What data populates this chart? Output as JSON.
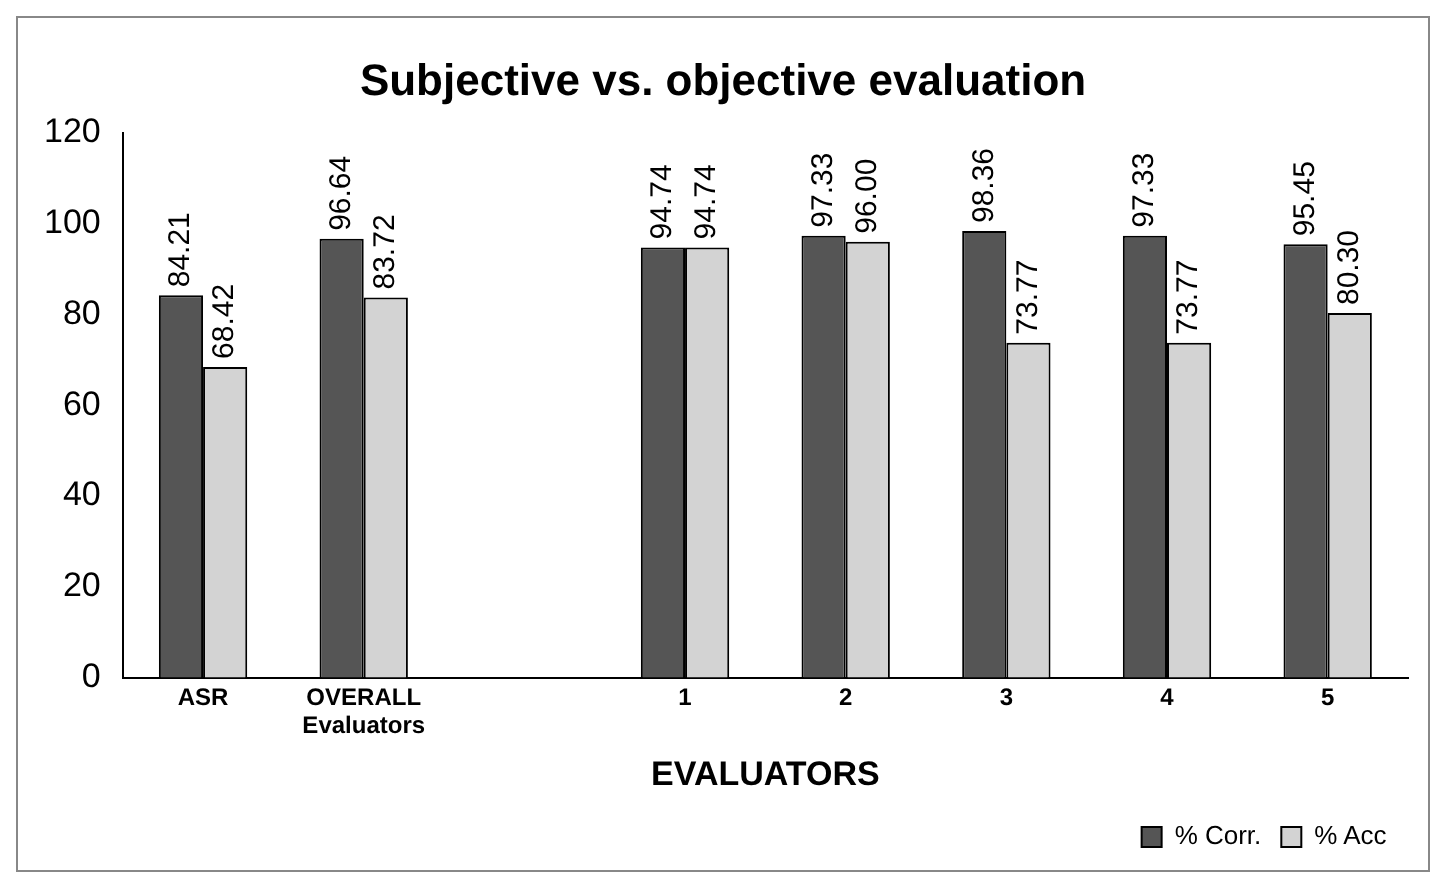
{
  "chart_data": {
    "type": "bar",
    "title": "Subjective vs. objective evaluation",
    "xlabel": "EVALUATORS",
    "categories": [
      "ASR",
      "OVERALL Evaluators",
      null,
      "1",
      "2",
      "3",
      "4",
      "5"
    ],
    "series": [
      {
        "name": "% Corr.",
        "color": "#555555",
        "values": [
          84.21,
          96.64,
          null,
          94.74,
          97.33,
          98.36,
          97.33,
          95.45
        ],
        "value_labels": [
          "84.21",
          "96.64",
          null,
          "94.74",
          "97.33",
          "98.36",
          "97.33",
          "95.45"
        ]
      },
      {
        "name": "% Acc",
        "color": "#d3d3d3",
        "values": [
          68.42,
          83.72,
          null,
          94.74,
          96.0,
          73.77,
          73.77,
          80.3
        ],
        "value_labels": [
          "68.42",
          "83.72",
          null,
          "94.74",
          "96.00",
          "73.77",
          "73.77",
          "80.30"
        ]
      }
    ],
    "ylim": [
      0,
      120
    ],
    "yticks": [
      0,
      20,
      40,
      60,
      80,
      100,
      120
    ],
    "grid": false,
    "legend": "bottom right"
  }
}
